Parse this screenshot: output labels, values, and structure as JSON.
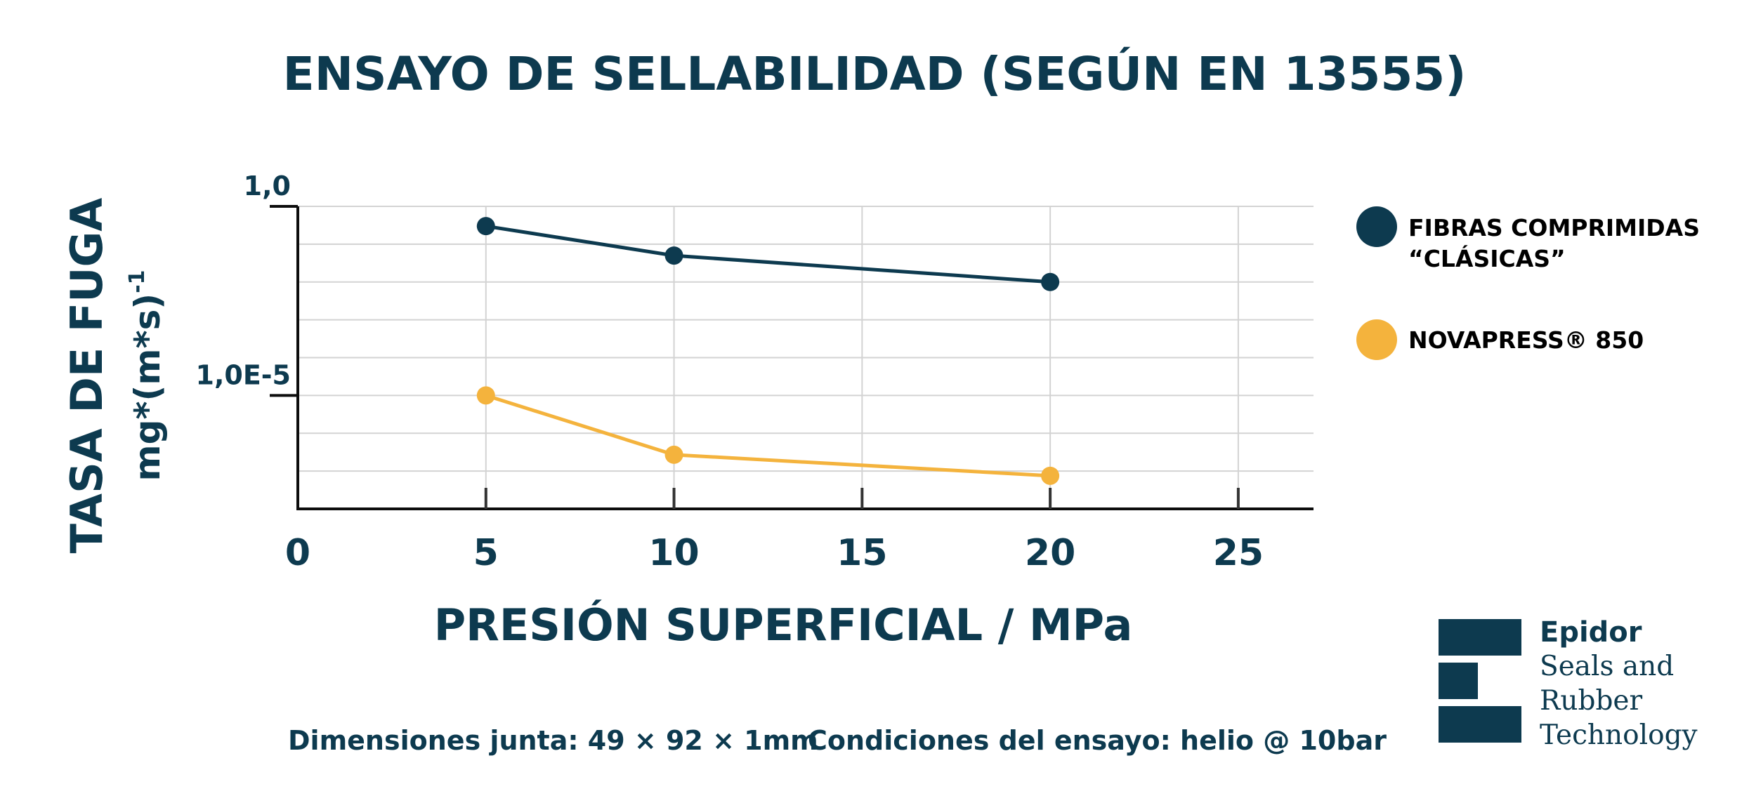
{
  "chart_data": {
    "type": "line",
    "title": "ENSAYO DE SELLABILIDAD (SEGÚN EN 13555)",
    "xlabel": "PRESIÓN SUPERFICIAL / MPa",
    "ylabel": "TASA DE FUGA",
    "ylabel_unit": "mg*(m*s)",
    "ylabel_unit_sup": "-1",
    "x_ticks": [
      "0",
      "5",
      "10",
      "15",
      "20",
      "25"
    ],
    "xlim": [
      0,
      27
    ],
    "y_scale": "log",
    "ylim": [
      1e-08,
      1.0
    ],
    "y_tick_labels": [
      {
        "value": 1.0,
        "label": "1,0"
      },
      {
        "value": 1e-05,
        "label": "1,0E-5"
      }
    ],
    "grid": true,
    "legend_position": "right",
    "series": [
      {
        "name": "FIBRAS COMPRIMIDAS “CLÁSICAS”",
        "name_lines": [
          "FIBRAS COMPRIMIDAS",
          "“CLÁSICAS”"
        ],
        "color": "#0d3a4f",
        "x": [
          5,
          10,
          20
        ],
        "y": [
          0.3,
          0.05,
          0.01
        ]
      },
      {
        "name": "NOVAPRESS® 850",
        "name_lines": [
          "NOVAPRESS® 850"
        ],
        "color": "#f4b33d",
        "x": [
          5,
          10,
          20
        ],
        "y": [
          1e-05,
          2.7e-07,
          7.5e-08
        ]
      }
    ]
  },
  "footer": {
    "dimensions": "Dimensiones junta: 49 × 92 × 1mm",
    "conditions": "Condiciones del ensayo: helio @ 10bar"
  },
  "brand": {
    "name": "Epidor",
    "tagline_lines": [
      "Seals and",
      "Rubber",
      "Technology"
    ],
    "color": "#0d3a4f"
  }
}
